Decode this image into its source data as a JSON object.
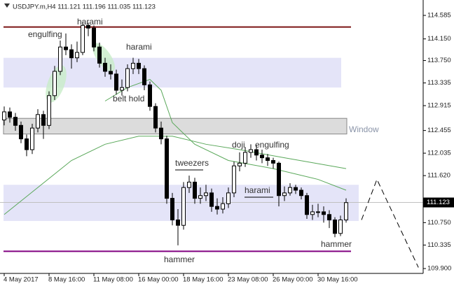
{
  "chart_data": {
    "type": "candlestick",
    "title": "USDJPY.m,H4  111.121 111.196 111.035 111.123",
    "open": [
      112.65,
      112.8,
      112.7,
      112.55,
      112.3,
      112.1,
      112.5,
      112.75,
      112.55,
      113.1,
      113.55,
      114.0,
      113.95,
      113.8,
      113.9,
      114.4,
      114.35,
      114.0,
      113.7,
      113.55,
      113.5,
      113.2,
      113.25,
      113.6,
      113.7,
      113.6,
      113.3,
      112.9,
      112.5,
      112.3,
      111.2,
      110.8,
      110.7,
      111.4,
      111.5,
      111.2,
      111.25,
      111.3,
      111.05,
      111.0,
      111.1,
      111.3,
      111.8,
      111.85,
      112.05,
      112.1,
      112.0,
      111.95,
      111.9,
      111.85,
      111.25,
      111.3,
      111.4,
      111.35,
      111.25,
      110.9,
      110.95,
      110.95,
      110.9,
      110.8,
      110.55,
      110.8
    ],
    "high": [
      112.9,
      112.88,
      112.78,
      112.62,
      112.38,
      112.58,
      112.85,
      112.82,
      113.18,
      113.65,
      114.12,
      114.25,
      114.05,
      114.1,
      114.47,
      114.45,
      114.4,
      114.08,
      113.8,
      113.68,
      113.58,
      113.4,
      113.68,
      113.8,
      113.78,
      113.66,
      113.36,
      112.96,
      112.62,
      112.36,
      111.3,
      111.0,
      111.5,
      111.62,
      111.58,
      111.4,
      111.45,
      111.38,
      111.2,
      111.22,
      111.4,
      111.88,
      112.05,
      112.15,
      112.2,
      112.18,
      112.1,
      112.02,
      111.95,
      111.88,
      111.42,
      111.48,
      111.45,
      111.4,
      111.3,
      111.08,
      111.1,
      111.05,
      110.98,
      110.85,
      110.88,
      111.2
    ],
    "low": [
      112.55,
      112.6,
      112.45,
      112.22,
      111.98,
      112.02,
      112.42,
      112.3,
      112.48,
      113.02,
      113.48,
      113.85,
      113.6,
      113.72,
      113.85,
      114.2,
      113.92,
      113.62,
      113.45,
      113.4,
      113.12,
      113.1,
      113.18,
      113.5,
      113.5,
      113.2,
      112.82,
      112.42,
      112.2,
      111.1,
      110.7,
      110.33,
      110.62,
      111.3,
      111.1,
      111.1,
      111.15,
      110.95,
      110.9,
      110.92,
      111.02,
      111.22,
      111.7,
      111.78,
      111.95,
      111.9,
      111.85,
      111.8,
      111.75,
      111.05,
      111.15,
      111.25,
      111.28,
      111.18,
      110.82,
      110.8,
      110.85,
      110.75,
      110.65,
      110.48,
      110.5,
      110.75
    ],
    "close": [
      112.8,
      112.7,
      112.55,
      112.3,
      112.1,
      112.5,
      112.75,
      112.55,
      113.1,
      113.55,
      114.0,
      113.95,
      113.8,
      113.9,
      114.4,
      114.35,
      114.0,
      113.7,
      113.55,
      113.5,
      113.2,
      113.25,
      113.6,
      113.7,
      113.6,
      113.3,
      112.9,
      112.5,
      112.3,
      111.2,
      110.8,
      110.7,
      111.4,
      111.5,
      111.2,
      111.25,
      111.3,
      111.05,
      111.0,
      111.1,
      111.3,
      111.8,
      111.85,
      112.05,
      112.1,
      112.0,
      111.95,
      111.9,
      111.85,
      111.25,
      111.3,
      111.4,
      111.35,
      111.25,
      110.9,
      110.95,
      110.95,
      110.9,
      110.8,
      110.55,
      110.8,
      111.12
    ],
    "ylim": [
      109.81,
      114.87
    ],
    "yticks": [
      114.585,
      {
        "value": 114.15,
        "label": "114.150"
      },
      {
        "value": 113.75,
        "label": "113.750"
      },
      113.335,
      112.915,
      112.455,
      112.035,
      {
        "value": 111.62,
        "label": "111.620"
      },
      {
        "value": 110.75,
        "label": "110.750"
      },
      110.335,
      {
        "value": 109.9,
        "label": "109.900"
      }
    ],
    "xlim": [
      -0.75,
      74.75
    ],
    "xticks": [
      {
        "value": 0,
        "label": "4 May 2017"
      },
      {
        "value": 8,
        "label": "8 May 16:00"
      },
      {
        "value": 16,
        "label": "11 May 08:00"
      },
      {
        "value": 24,
        "label": "16 May 00:00"
      },
      {
        "value": 32,
        "label": "18 May 16:00"
      },
      {
        "value": 40,
        "label": "23 May 08:00"
      },
      {
        "value": 48,
        "label": "26 May 00:00"
      },
      {
        "value": 56,
        "label": "30 May 16:00"
      }
    ],
    "current_price": 111.123,
    "levels": [
      {
        "value": 114.37,
        "color": "#7b1414"
      },
      {
        "value": 110.22,
        "color": "#800080"
      }
    ],
    "zones": [
      {
        "from": 113.25,
        "to": 113.8,
        "color": "#e4e4f8"
      },
      {
        "from": 112.39,
        "to": 112.68,
        "color": "#dcdcdc"
      },
      {
        "from": 110.78,
        "to": 111.45,
        "color": "#e4e4f8"
      }
    ],
    "lines": [
      {
        "color": "#5aa85a",
        "x": [
          18,
          22,
          26,
          28,
          30,
          34,
          40,
          48,
          56,
          61
        ],
        "values": [
          113.0,
          113.25,
          113.4,
          113.2,
          112.6,
          112.2,
          111.9,
          111.75,
          111.55,
          111.35
        ]
      },
      {
        "color": "#5aa85a",
        "x": [
          0,
          6,
          12,
          18,
          24,
          30,
          36,
          42,
          50,
          61
        ],
        "values": [
          110.9,
          111.4,
          111.9,
          112.2,
          112.35,
          112.35,
          112.2,
          112.1,
          111.95,
          111.75
        ]
      }
    ],
    "projection": {
      "x": [
        63.75,
        66.5,
        73.9
      ],
      "values": [
        110.8,
        111.55,
        109.92
      ]
    },
    "annotations": [
      "engulfing",
      "harami",
      "harami",
      "belt hold",
      "doji",
      "engulfing",
      "tweezers",
      "harami",
      "hammer",
      "hammer",
      "Window"
    ]
  }
}
